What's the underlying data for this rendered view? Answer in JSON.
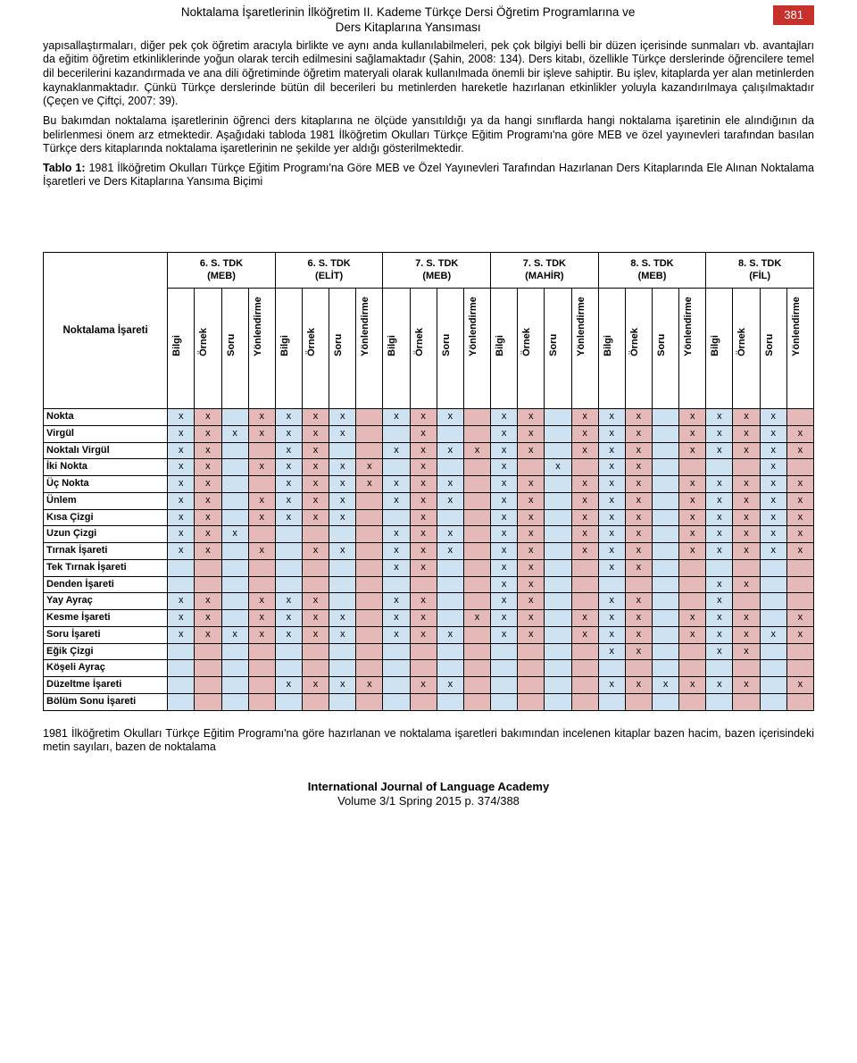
{
  "header": {
    "title_line1": "Noktalama İşaretlerinin İlköğretim II. Kademe Türkçe Dersi Öğretim Programlarına ve",
    "title_line2": "Ders Kitaplarına Yansıması",
    "page_number": "381"
  },
  "paragraphs": {
    "p1": "yapısallaştırmaları, diğer pek çok öğretim aracıyla birlikte ve aynı anda kullanılabilmeleri, pek çok bilgiyi belli bir düzen içerisinde sunmaları vb. avantajları da eğitim öğretim etkinliklerinde yoğun olarak tercih edilmesini sağlamaktadır (Şahin, 2008: 134). Ders kitabı, özellikle Türkçe derslerinde öğrencilere temel dil becerilerini kazandırmada ve ana dili öğretiminde öğretim materyali olarak kullanılmada önemli bir işleve sahiptir. Bu işlev, kitaplarda yer alan metinlerden kaynaklanmaktadır. Çünkü Türkçe derslerinde bütün dil becerileri bu metinlerden hareketle hazırlanan etkinlikler yoluyla kazandırılmaya çalışılmaktadır (Çeçen ve Çiftçi, 2007: 39).",
    "p2": "Bu bakımdan noktalama işaretlerinin öğrenci ders kitaplarına ne ölçüde yansıtıldığı ya da hangi sınıflarda hangi noktalama işaretinin ele alındığının da belirlenmesi önem arz etmektedir. Aşağıdaki tabloda 1981 İlköğretim Okulları Türkçe Eğitim Programı'na göre MEB ve özel yayınevleri tarafından basılan Türkçe ders kitaplarında noktalama işaretlerinin ne şekilde yer aldığı gösterilmektedir.",
    "caption_bold": "Tablo 1:",
    "caption_rest": " 1981 İlköğretim Okulları Türkçe Eğitim Programı'na Göre MEB ve Özel Yayınevleri Tarafından Hazırlanan Ders Kitaplarında Ele Alınan Noktalama İşaretleri ve Ders Kitaplarına Yansıma Biçimi",
    "p3": "1981 İlköğretim Okulları Türkçe Eğitim Programı'na göre hazırlanan ve noktalama işaretleri bakımından incelenen kitaplar bazen hacim, bazen içerisindeki metin sayıları, bazen de noktalama"
  },
  "table": {
    "row_header_title": "Noktalama İşareti",
    "groups": [
      {
        "l1": "6. S. TDK",
        "l2": "(MEB)"
      },
      {
        "l1": "6. S. TDK",
        "l2": "(ELİT)"
      },
      {
        "l1": "7.  S. TDK",
        "l2": "(MEB)"
      },
      {
        "l1": "7.  S. TDK",
        "l2": "(MAHİR)"
      },
      {
        "l1": "8.  S. TDK",
        "l2": "(MEB)"
      },
      {
        "l1": "8.  S. TDK",
        "l2": "(FİL)"
      }
    ],
    "subcols": [
      "Bilgi",
      "Örnek",
      "Soru",
      "Yönlendirme"
    ],
    "color_pattern": [
      "c1",
      "c2",
      "c1",
      "c2",
      "c1",
      "c2",
      "c1",
      "c2",
      "c1",
      "c2",
      "c1",
      "c2",
      "c1",
      "c2",
      "c1",
      "c2",
      "c1",
      "c2",
      "c1",
      "c2",
      "c1",
      "c2",
      "c1",
      "c2"
    ],
    "rows": [
      {
        "label": "Nokta",
        "cells": [
          "x",
          "x",
          "",
          "x",
          "x",
          "x",
          "x",
          "",
          "x",
          "x",
          "x",
          "",
          "x",
          "x",
          "",
          "x",
          "x",
          "x",
          "",
          "x",
          "x",
          "x",
          "x",
          ""
        ]
      },
      {
        "label": "Virgül",
        "cells": [
          "x",
          "x",
          "x",
          "x",
          "x",
          "x",
          "x",
          "",
          "",
          "x",
          "",
          "",
          "x",
          "x",
          "",
          "x",
          "x",
          "x",
          "",
          "x",
          "x",
          "x",
          "x",
          "x"
        ]
      },
      {
        "label": "Noktalı Virgül",
        "cells": [
          "x",
          "x",
          "",
          "",
          "x",
          "x",
          "",
          "",
          "x",
          "x",
          "x",
          "x",
          "x",
          "x",
          "",
          "x",
          "x",
          "x",
          "",
          "x",
          "x",
          "x",
          "x",
          "x"
        ]
      },
      {
        "label": "İki Nokta",
        "cells": [
          "x",
          "x",
          "",
          "x",
          "x",
          "x",
          "x",
          "x",
          "",
          "x",
          "",
          "",
          "x",
          "",
          "x",
          "",
          "x",
          "x",
          "",
          "",
          "",
          "",
          "x",
          ""
        ]
      },
      {
        "label": "Üç Nokta",
        "cells": [
          "x",
          "x",
          "",
          "",
          "x",
          "x",
          "x",
          "x",
          "x",
          "x",
          "x",
          "",
          "x",
          "x",
          "",
          "x",
          "x",
          "x",
          "",
          "x",
          "x",
          "x",
          "x",
          "x"
        ]
      },
      {
        "label": "Ünlem",
        "cells": [
          "x",
          "x",
          "",
          "x",
          "x",
          "x",
          "x",
          "",
          "x",
          "x",
          "x",
          "",
          "x",
          "x",
          "",
          "x",
          "x",
          "x",
          "",
          "x",
          "x",
          "x",
          "x",
          "x"
        ]
      },
      {
        "label": "Kısa Çizgi",
        "cells": [
          "x",
          "x",
          "",
          "x",
          "x",
          "x",
          "x",
          "",
          "",
          "x",
          "",
          "",
          "x",
          "x",
          "",
          "x",
          "x",
          "x",
          "",
          "x",
          "x",
          "x",
          "x",
          "x"
        ]
      },
      {
        "label": "Uzun Çizgi",
        "cells": [
          "x",
          "x",
          "x",
          "",
          "",
          "",
          "",
          "",
          "x",
          "x",
          "x",
          "",
          "x",
          "x",
          "",
          "x",
          "x",
          "x",
          "",
          "x",
          "x",
          "x",
          "x",
          "x"
        ]
      },
      {
        "label": "Tırnak İşareti",
        "cells": [
          "x",
          "x",
          "",
          "x",
          "",
          "x",
          "x",
          "",
          "x",
          "x",
          "x",
          "",
          "x",
          "x",
          "",
          "x",
          "x",
          "x",
          "",
          "x",
          "x",
          "x",
          "x",
          "x"
        ]
      },
      {
        "label": "Tek Tırnak İşareti",
        "cells": [
          "",
          "",
          "",
          "",
          "",
          "",
          "",
          "",
          "x",
          "x",
          "",
          "",
          "x",
          "x",
          "",
          "",
          "x",
          "x",
          "",
          "",
          "",
          "",
          "",
          ""
        ]
      },
      {
        "label": "Denden İşareti",
        "cells": [
          "",
          "",
          "",
          "",
          "",
          "",
          "",
          "",
          "",
          "",
          "",
          "",
          "x",
          "x",
          "",
          "",
          "",
          "",
          "",
          "",
          "x",
          "x",
          "",
          ""
        ]
      },
      {
        "label": "Yay Ayraç",
        "cells": [
          "x",
          "x",
          "",
          "x",
          "x",
          "x",
          "",
          "",
          "x",
          "x",
          "",
          "",
          "x",
          "x",
          "",
          "",
          "x",
          "x",
          "",
          "",
          "x",
          "",
          "",
          ""
        ]
      },
      {
        "label": "Kesme İşareti",
        "cells": [
          "x",
          "x",
          "",
          "x",
          "x",
          "x",
          "x",
          "",
          "x",
          "x",
          "",
          "x",
          "x",
          "x",
          "",
          "x",
          "x",
          "x",
          "",
          "x",
          "x",
          "x",
          "",
          "x"
        ]
      },
      {
        "label": "Soru İşareti",
        "cells": [
          "x",
          "x",
          "x",
          "x",
          "x",
          "x",
          "x",
          "",
          "x",
          "x",
          "x",
          "",
          "x",
          "x",
          "",
          "x",
          "x",
          "x",
          "",
          "x",
          "x",
          "x",
          "x",
          "x"
        ]
      },
      {
        "label": "Eğik Çizgi",
        "cells": [
          "",
          "",
          "",
          "",
          "",
          "",
          "",
          "",
          "",
          "",
          "",
          "",
          "",
          "",
          "",
          "",
          "x",
          "x",
          "",
          "",
          "x",
          "x",
          "",
          ""
        ]
      },
      {
        "label": "Köşeli Ayraç",
        "cells": [
          "",
          "",
          "",
          "",
          "",
          "",
          "",
          "",
          "",
          "",
          "",
          "",
          "",
          "",
          "",
          "",
          "",
          "",
          "",
          "",
          "",
          "",
          "",
          ""
        ]
      },
      {
        "label": "Düzeltme İşareti",
        "cells": [
          "",
          "",
          "",
          "",
          "x",
          "x",
          "x",
          "x",
          "",
          "x",
          "x",
          "",
          "",
          "",
          "",
          "",
          "x",
          "x",
          "x",
          "x",
          "x",
          "x",
          "",
          "x"
        ]
      },
      {
        "label": "Bölüm Sonu İşareti",
        "cells": [
          "",
          "",
          "",
          "",
          "",
          "",
          "",
          "",
          "",
          "",
          "",
          "",
          "",
          "",
          "",
          "",
          "",
          "",
          "",
          "",
          "",
          "",
          "",
          ""
        ]
      }
    ]
  },
  "footer": {
    "journal": "International Journal of Language Academy",
    "issue": "Volume 3/1 Spring 2015 p. 374/388"
  },
  "colors": {
    "accent_red": "#c7302b",
    "cell_blue": "#cee2f2",
    "cell_pink": "#e4b9b7"
  }
}
